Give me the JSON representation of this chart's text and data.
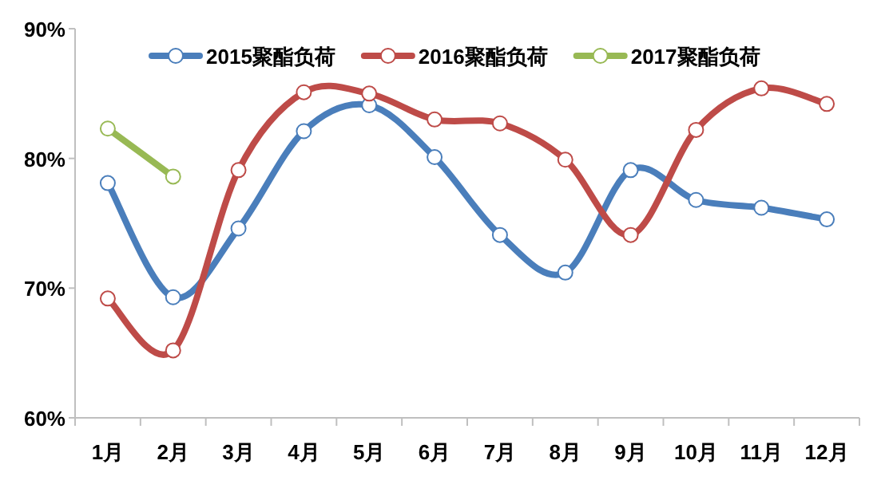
{
  "chart_data": {
    "type": "line",
    "categories": [
      "1月",
      "2月",
      "3月",
      "4月",
      "5月",
      "6月",
      "7月",
      "8月",
      "9月",
      "10月",
      "11月",
      "12月"
    ],
    "series": [
      {
        "name": "2015聚酯负荷",
        "color": "#4a7ebb",
        "values": [
          78.1,
          69.3,
          74.6,
          82.1,
          84.1,
          80.1,
          74.1,
          71.2,
          79.1,
          76.8,
          76.2,
          75.3
        ]
      },
      {
        "name": "2016聚酯负荷",
        "color": "#be4b48",
        "values": [
          69.2,
          65.2,
          79.1,
          85.1,
          85.0,
          83.0,
          82.7,
          79.9,
          74.1,
          82.2,
          85.4,
          84.2
        ]
      },
      {
        "name": "2017聚酯负荷",
        "color": "#98b954",
        "values": [
          82.3,
          78.6,
          null,
          null,
          null,
          null,
          null,
          null,
          null,
          null,
          null,
          null
        ]
      }
    ],
    "ylim": [
      60,
      90
    ],
    "yticks": [
      {
        "value": 60,
        "label": "60%"
      },
      {
        "value": 70,
        "label": "70%"
      },
      {
        "value": 80,
        "label": "80%"
      },
      {
        "value": 90,
        "label": "90%"
      }
    ],
    "grid": false,
    "legend": "top",
    "marker": "circle",
    "line_style": "solid"
  }
}
